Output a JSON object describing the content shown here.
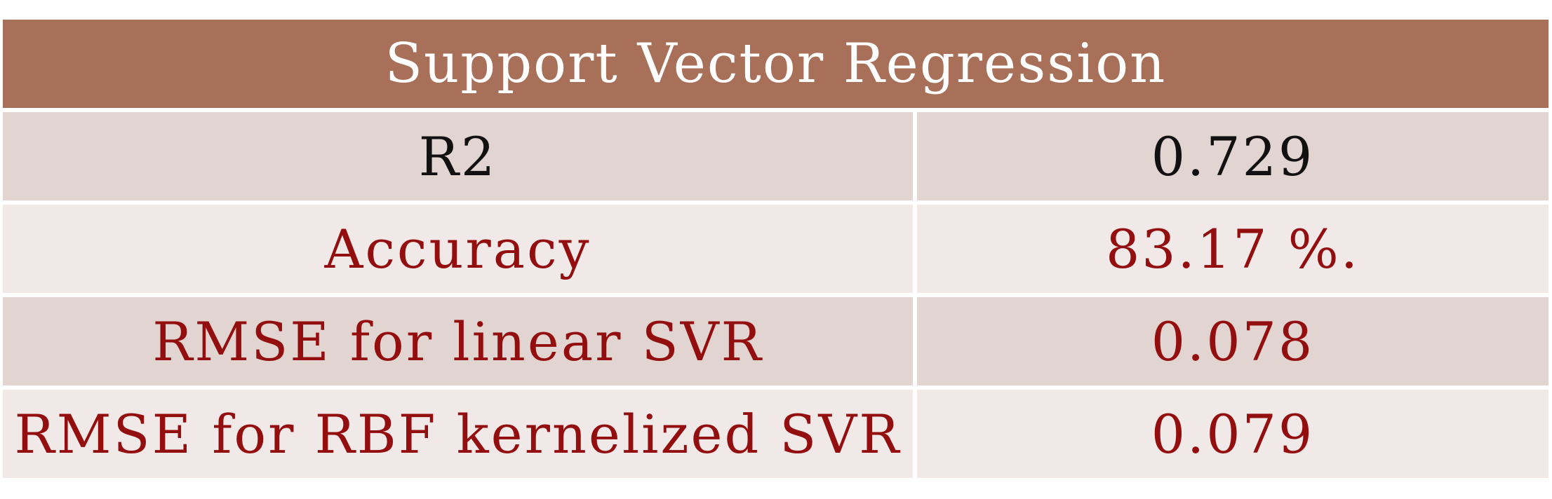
{
  "table": {
    "title": "Support Vector Regression",
    "colors": {
      "header_bg": "#a86f59",
      "row_dark": "#e2d4d1",
      "row_light": "#f0e9e8",
      "text_red": "#930f0f"
    },
    "rows": [
      {
        "label": "R2",
        "value": "0.729"
      },
      {
        "label": "Accuracy",
        "value": "83.17 %."
      },
      {
        "label": "RMSE for linear SVR",
        "value": "0.078"
      },
      {
        "label": "RMSE for RBF kernelized SVR",
        "value": "0.079"
      }
    ]
  }
}
